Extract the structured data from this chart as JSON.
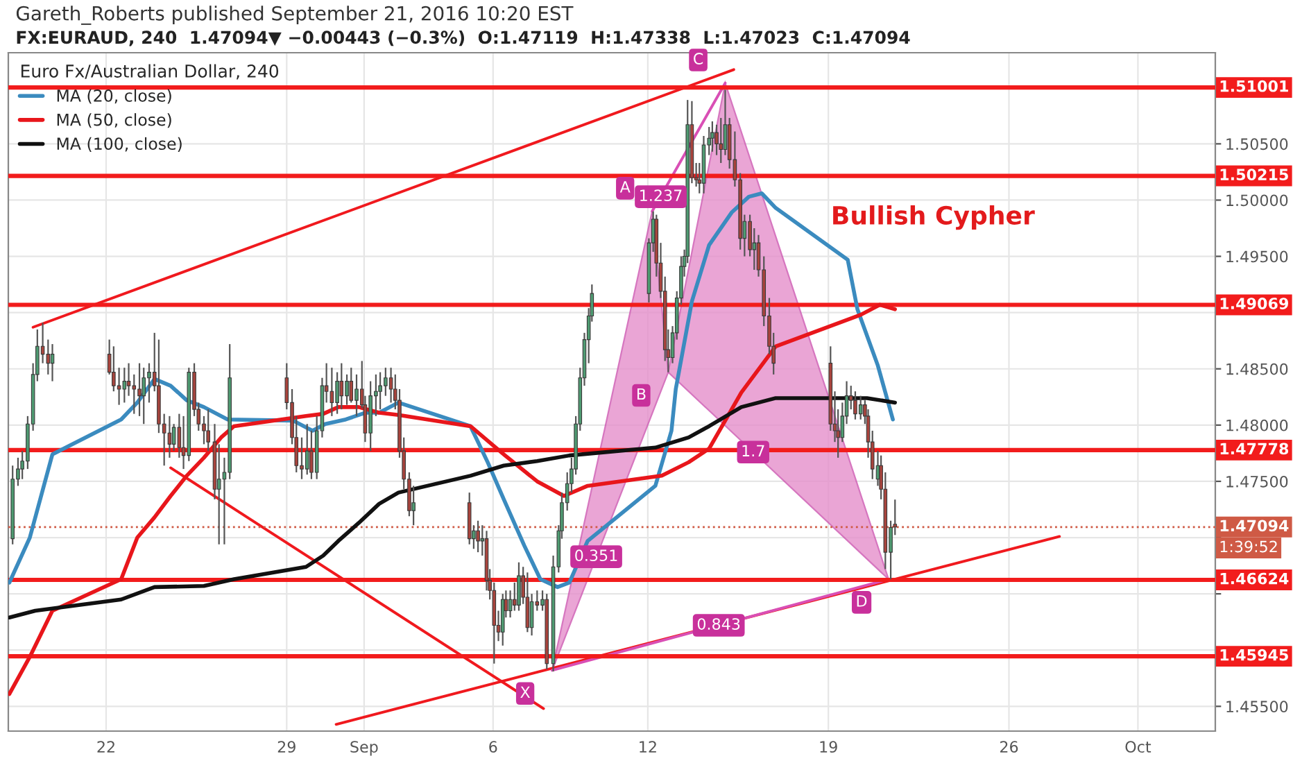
{
  "chart_data": {
    "type": "candlestick",
    "title": "Gareth_Roberts published September 21, 2016 10:20 EST",
    "subtitle": "FX:EURAUD, 240  1.47094▼ −0.00443 (−0.3%)  O:1.47119  H:1.47338  L:1.47023  C:1.47094",
    "legend_title": "Euro Fx/Australian Dollar, 240",
    "legend": "top left",
    "grid": true,
    "x": [
      "2016-08-18T09:00",
      "2016-08-18T14:00",
      "2016-08-18T18:00",
      "2016-08-18T23:00",
      "2016-08-19T04:00",
      "2016-08-19T08:00",
      "2016-08-19T13:00",
      "2016-08-19T18:00",
      "2016-08-19T22:00",
      "2016-08-22T03:00",
      "2016-08-22T07:00",
      "2016-08-22T12:00",
      "2016-08-22T17:00",
      "2016-08-22T21:00",
      "2016-08-23T02:00",
      "2016-08-23T07:00",
      "2016-08-23T11:00",
      "2016-08-23T16:00",
      "2016-08-23T21:00",
      "2016-08-24T01:00",
      "2016-08-24T06:00",
      "2016-08-24T11:00",
      "2016-08-24T15:00",
      "2016-08-24T20:00",
      "2016-08-25T00:00",
      "2016-08-25T05:00",
      "2016-08-25T10:00",
      "2016-08-25T14:00",
      "2016-08-25T19:00",
      "2016-08-25T23:00",
      "2016-08-26T05:00",
      "2016-08-26T09:00",
      "2016-08-26T14:00",
      "2016-08-26T19:00",
      "2016-08-29T00:00",
      "2016-08-29T05:00",
      "2016-08-29T09:00",
      "2016-08-29T14:00",
      "2016-08-29T19:00",
      "2016-08-29T23:00",
      "2016-08-30T04:00",
      "2016-08-30T09:00",
      "2016-08-30T13:00",
      "2016-08-30T18:00",
      "2016-08-30T23:00",
      "2016-08-31T03:00",
      "2016-08-31T08:00",
      "2016-08-31T12:00",
      "2016-08-31T17:00",
      "2016-08-31T22:00",
      "2016-09-01T01:00",
      "2016-09-01T06:00",
      "2016-09-01T11:00",
      "2016-09-01T15:00",
      "2016-09-01T20:00",
      "2016-09-02T01:00",
      "2016-09-02T05:00",
      "2016-09-02T09:00",
      "2016-09-02T13:00",
      "2016-09-02T18:00",
      "2016-09-02T22:00",
      "2016-09-05T02:00",
      "2016-09-05T06:00",
      "2016-09-05T10:00",
      "2016-09-05T14:00",
      "2016-09-05T18:00",
      "2016-09-05T21:00",
      "2016-09-06T01:00",
      "2016-09-06T05:00",
      "2016-09-06T09:00",
      "2016-09-06T12:00",
      "2016-09-06T16:00",
      "2016-09-06T20:00",
      "2016-09-07T00:00",
      "2016-09-07T04:00",
      "2016-09-07T08:00",
      "2016-09-07T12:00",
      "2016-09-07T17:00",
      "2016-09-07T22:00",
      "2016-09-08T02:00",
      "2016-09-08T08:00",
      "2016-09-08T13:00",
      "2016-09-08T16:00",
      "2016-09-08T21:00",
      "2016-09-09T01:00",
      "2016-09-09T05:00",
      "2016-09-09T09:00",
      "2016-09-09T13:00",
      "2016-09-09T17:00",
      "2016-09-09T20:00",
      "2016-09-12T01:00",
      "2016-09-12T05:00",
      "2016-09-12T08:00",
      "2016-09-12T12:00",
      "2016-09-12T16:00",
      "2016-09-12T19:00",
      "2016-09-12T23:00",
      "2016-09-13T03:00",
      "2016-09-13T07:00",
      "2016-09-13T10:00",
      "2016-09-13T13:00",
      "2016-09-13T17:00",
      "2016-09-13T21:00",
      "2016-09-14T00:00",
      "2016-09-14T04:00",
      "2016-09-14T09:00",
      "2016-09-14T12:00",
      "2016-09-14T16:00",
      "2016-09-14T20:00",
      "2016-09-15T00:00",
      "2016-09-15T04:00",
      "2016-09-15T09:00",
      "2016-09-15T14:00",
      "2016-09-15T18:00",
      "2016-09-15T23:00",
      "2016-09-16T03:00",
      "2016-09-16T07:00",
      "2016-09-16T12:00",
      "2016-09-16T17:00",
      "2016-09-16T21:00",
      "2016-09-19T02:00",
      "2016-09-19T06:00",
      "2016-09-19T09:00",
      "2016-09-19T13:00",
      "2016-09-19T17:00",
      "2016-09-19T21:00",
      "2016-09-20T01:00",
      "2016-09-20T06:00",
      "2016-09-20T10:00",
      "2016-09-20T13:00",
      "2016-09-20T17:00",
      "2016-09-20T22:00",
      "2016-09-21T01:00",
      "2016-09-21T05:00",
      "2016-09-21T10:00",
      "2016-09-21T14:00"
    ],
    "ohlc": [
      [
        1.4699,
        1.4764,
        1.4694,
        1.4752
      ],
      [
        1.4752,
        1.4771,
        1.4746,
        1.4761
      ],
      [
        1.4761,
        1.4777,
        1.4752,
        1.4768
      ],
      [
        1.4768,
        1.4808,
        1.4761,
        1.4801
      ],
      [
        1.4801,
        1.4855,
        1.4795,
        1.4845
      ],
      [
        1.4845,
        1.4885,
        1.4839,
        1.487
      ],
      [
        1.487,
        1.4891,
        1.4855,
        1.4863
      ],
      [
        1.4863,
        1.4876,
        1.4845,
        1.4855
      ],
      [
        1.4855,
        1.4872,
        1.4839,
        1.4863
      ],
      [
        1.4863,
        1.4876,
        1.4845,
        1.4847
      ],
      [
        1.4847,
        1.487,
        1.483,
        1.4835
      ],
      [
        1.4835,
        1.4851,
        1.4818,
        1.4832
      ],
      [
        1.4832,
        1.4851,
        1.482,
        1.4839
      ],
      [
        1.4839,
        1.4855,
        1.4826,
        1.4835
      ],
      [
        1.4835,
        1.4845,
        1.481,
        1.4832
      ],
      [
        1.4832,
        1.4855,
        1.4808,
        1.4826
      ],
      [
        1.4826,
        1.4851,
        1.4801,
        1.4842
      ],
      [
        1.4842,
        1.4855,
        1.482,
        1.4847
      ],
      [
        1.4847,
        1.4882,
        1.483,
        1.4835
      ],
      [
        1.4835,
        1.4876,
        1.4793,
        1.4801
      ],
      [
        1.4801,
        1.481,
        1.4764,
        1.4793
      ],
      [
        1.4793,
        1.4808,
        1.4771,
        1.4783
      ],
      [
        1.4783,
        1.4801,
        1.4777,
        1.4798
      ],
      [
        1.4798,
        1.481,
        1.4771,
        1.478
      ],
      [
        1.478,
        1.4808,
        1.4761,
        1.4773
      ],
      [
        1.4773,
        1.4851,
        1.4768,
        1.4847
      ],
      [
        1.4847,
        1.4855,
        1.4808,
        1.4814
      ],
      [
        1.4814,
        1.482,
        1.4795,
        1.4801
      ],
      [
        1.4801,
        1.4808,
        1.4783,
        1.4795
      ],
      [
        1.4795,
        1.4814,
        1.4777,
        1.4785
      ],
      [
        1.4785,
        1.4801,
        1.4734,
        1.4743
      ],
      [
        1.4743,
        1.4783,
        1.4694,
        1.4752
      ],
      [
        1.4752,
        1.4771,
        1.4694,
        1.4758
      ],
      [
        1.4758,
        1.4872,
        1.4752,
        1.4842
      ],
      [
        1.4842,
        1.4855,
        1.4814,
        1.482
      ],
      [
        1.482,
        1.4832,
        1.4783,
        1.4789
      ],
      [
        1.4789,
        1.4808,
        1.4758,
        1.4764
      ],
      [
        1.4764,
        1.4789,
        1.4752,
        1.4761
      ],
      [
        1.4761,
        1.4801,
        1.4756,
        1.4777
      ],
      [
        1.4777,
        1.4795,
        1.4752,
        1.4758
      ],
      [
        1.4758,
        1.4808,
        1.4752,
        1.4795
      ],
      [
        1.4795,
        1.4842,
        1.4789,
        1.4835
      ],
      [
        1.4835,
        1.4855,
        1.482,
        1.483
      ],
      [
        1.483,
        1.4851,
        1.4808,
        1.482
      ],
      [
        1.482,
        1.4847,
        1.481,
        1.4839
      ],
      [
        1.4839,
        1.4855,
        1.4814,
        1.4826
      ],
      [
        1.4826,
        1.4845,
        1.4818,
        1.4839
      ],
      [
        1.4839,
        1.4851,
        1.482,
        1.4822
      ],
      [
        1.4822,
        1.4845,
        1.4808,
        1.4832
      ],
      [
        1.4832,
        1.4857,
        1.4815,
        1.4818
      ],
      [
        1.4818,
        1.4826,
        1.4785,
        1.4793
      ],
      [
        1.4793,
        1.4839,
        1.4777,
        1.4826
      ],
      [
        1.4826,
        1.4845,
        1.4808,
        1.483
      ],
      [
        1.483,
        1.4847,
        1.4814,
        1.4835
      ],
      [
        1.4835,
        1.4851,
        1.4826,
        1.4842
      ],
      [
        1.4842,
        1.4851,
        1.482,
        1.4832
      ],
      [
        1.4832,
        1.4845,
        1.4814,
        1.4822
      ],
      [
        1.4822,
        1.4832,
        1.4771,
        1.4777
      ],
      [
        1.4777,
        1.4789,
        1.4743,
        1.4752
      ],
      [
        1.4752,
        1.4758,
        1.4719,
        1.4724
      ],
      [
        1.4724,
        1.4746,
        1.4711,
        1.4731
      ],
      [
        1.4731,
        1.474,
        1.4694,
        1.4699
      ],
      [
        1.4699,
        1.4711,
        1.469,
        1.4706
      ],
      [
        1.4706,
        1.4715,
        1.4687,
        1.4697
      ],
      [
        1.4697,
        1.4711,
        1.4684,
        1.4699
      ],
      [
        1.4699,
        1.4706,
        1.4653,
        1.4662
      ],
      [
        1.4662,
        1.4672,
        1.4645,
        1.4653
      ],
      [
        1.4653,
        1.466,
        1.4588,
        1.4622
      ],
      [
        1.4622,
        1.4635,
        1.4608,
        1.4616
      ],
      [
        1.4616,
        1.465,
        1.4604,
        1.4645
      ],
      [
        1.4645,
        1.4653,
        1.4629,
        1.4635
      ],
      [
        1.4635,
        1.4653,
        1.4629,
        1.4645
      ],
      [
        1.4645,
        1.466,
        1.4635,
        1.464
      ],
      [
        1.464,
        1.4678,
        1.4635,
        1.4666
      ],
      [
        1.4666,
        1.4674,
        1.4641,
        1.4647
      ],
      [
        1.4647,
        1.4669,
        1.4616,
        1.462
      ],
      [
        1.462,
        1.465,
        1.4613,
        1.4643
      ],
      [
        1.4643,
        1.4653,
        1.4635,
        1.464
      ],
      [
        1.464,
        1.4653,
        1.4635,
        1.4645
      ],
      [
        1.4645,
        1.465,
        1.4583,
        1.4588
      ],
      [
        1.4588,
        1.4684,
        1.4581,
        1.4674
      ],
      [
        1.4674,
        1.4711,
        1.4669,
        1.4706
      ],
      [
        1.4706,
        1.474,
        1.4699,
        1.4731
      ],
      [
        1.4731,
        1.4758,
        1.4724,
        1.4748
      ],
      [
        1.4748,
        1.4771,
        1.474,
        1.4761
      ],
      [
        1.4761,
        1.4808,
        1.4756,
        1.4801
      ],
      [
        1.4801,
        1.4851,
        1.4795,
        1.4842
      ],
      [
        1.4842,
        1.4882,
        1.4835,
        1.4876
      ],
      [
        1.4876,
        1.4904,
        1.4855,
        1.4897
      ],
      [
        1.4897,
        1.4925,
        1.4892,
        1.4917
      ],
      [
        1.4917,
        1.4966,
        1.4909,
        1.4962
      ],
      [
        1.4962,
        1.499,
        1.4954,
        1.4983
      ],
      [
        1.4983,
        1.4987,
        1.4932,
        1.4944
      ],
      [
        1.4944,
        1.4962,
        1.4913,
        1.4919
      ],
      [
        1.4919,
        1.4932,
        1.4857,
        1.4867
      ],
      [
        1.4867,
        1.4885,
        1.4847,
        1.486
      ],
      [
        1.486,
        1.4888,
        1.4855,
        1.4882
      ],
      [
        1.4882,
        1.4919,
        1.4876,
        1.4913
      ],
      [
        1.4913,
        1.495,
        1.4907,
        1.4941
      ],
      [
        1.4941,
        1.4956,
        1.4932,
        1.495
      ],
      [
        1.495,
        1.5089,
        1.4944,
        1.5067
      ],
      [
        1.5067,
        1.5088,
        1.5015,
        1.502
      ],
      [
        1.502,
        1.5033,
        1.5012,
        1.5018
      ],
      [
        1.5018,
        1.5033,
        1.5006,
        1.5015
      ],
      [
        1.5015,
        1.5057,
        1.5006,
        1.5049
      ],
      [
        1.5049,
        1.5065,
        1.504,
        1.5055
      ],
      [
        1.5055,
        1.507,
        1.5043,
        1.506
      ],
      [
        1.506,
        1.5067,
        1.504,
        1.505
      ],
      [
        1.505,
        1.5073,
        1.5033,
        1.5045
      ],
      [
        1.5045,
        1.5098,
        1.504,
        1.5067
      ],
      [
        1.5067,
        1.5073,
        1.5028,
        1.5036
      ],
      [
        1.5036,
        1.5061,
        1.5012,
        1.5018
      ],
      [
        1.5018,
        1.5024,
        1.4956,
        1.4966
      ],
      [
        1.4966,
        1.4987,
        1.495,
        1.4981
      ],
      [
        1.4981,
        1.4987,
        1.495,
        1.4956
      ],
      [
        1.4956,
        1.4975,
        1.4938,
        1.4962
      ],
      [
        1.4962,
        1.4969,
        1.4932,
        1.4938
      ],
      [
        1.4938,
        1.495,
        1.4888,
        1.4897
      ],
      [
        1.4897,
        1.4913,
        1.4863,
        1.487
      ],
      [
        1.487,
        1.4882,
        1.4845,
        1.4855
      ],
      [
        1.4855,
        1.487,
        1.4795,
        1.4801
      ],
      [
        1.4801,
        1.483,
        1.4785,
        1.4795
      ],
      [
        1.4795,
        1.4814,
        1.4771,
        1.4789
      ],
      [
        1.4789,
        1.482,
        1.4785,
        1.4808
      ],
      [
        1.4808,
        1.4839,
        1.4801,
        1.4826
      ],
      [
        1.4826,
        1.4835,
        1.4814,
        1.4822
      ],
      [
        1.4822,
        1.483,
        1.4805,
        1.481
      ],
      [
        1.481,
        1.4826,
        1.4805,
        1.4818
      ],
      [
        1.4818,
        1.4822,
        1.4801,
        1.4808
      ],
      [
        1.4808,
        1.4814,
        1.4771,
        1.4785
      ],
      [
        1.4785,
        1.4795,
        1.4752,
        1.4761
      ],
      [
        1.4752,
        1.4777,
        1.4746,
        1.4764
      ],
      [
        1.4764,
        1.4773,
        1.4734,
        1.4743
      ],
      [
        1.4743,
        1.4758,
        1.4672,
        1.4687
      ],
      [
        1.4687,
        1.4715,
        1.4663,
        1.4709
      ],
      [
        1.47119,
        1.47338,
        1.47023,
        1.47094
      ]
    ],
    "series": [
      {
        "type": "line",
        "name": "MA (20, close)",
        "color": "#3b8bbf",
        "x": [
          "2016-08-18T06:00",
          "2016-08-19T01:00",
          "2016-08-19T22:00",
          "2016-08-22T14:00",
          "2016-08-23T05:00",
          "2016-08-23T21:00",
          "2016-08-24T12:00",
          "2016-08-25T03:00",
          "2016-08-25T19:00",
          "2016-08-26T17:00",
          "2016-08-29T06:00",
          "2016-08-30T00:00",
          "2016-08-30T12:00",
          "2016-08-31T07:00",
          "2016-09-01T01:00",
          "2016-09-01T14:00",
          "2016-09-02T08:00",
          "2016-09-05T03:00",
          "2016-09-05T19:00",
          "2016-09-06T10:00",
          "2016-09-07T05:00",
          "2016-09-07T20:00",
          "2016-09-08T12:00",
          "2016-09-08T23:00",
          "2016-09-09T16:00",
          "2016-09-12T07:00",
          "2016-09-12T22:00",
          "2016-09-13T02:00",
          "2016-09-13T17:00",
          "2016-09-14T09:00",
          "2016-09-15T06:00",
          "2016-09-15T22:00",
          "2016-09-16T10:00",
          "2016-09-16T23:00",
          "2016-09-19T18:00",
          "2016-09-20T03:00",
          "2016-09-20T22:00",
          "2016-09-21T12:00"
        ],
        "values": [
          1.466,
          1.47,
          1.4774,
          1.4805,
          1.482,
          1.4841,
          1.4835,
          1.4822,
          1.4816,
          1.4805,
          1.4804,
          1.4795,
          1.4801,
          1.4805,
          1.4811,
          1.4811,
          1.482,
          1.4799,
          1.4767,
          1.4734,
          1.4693,
          1.4663,
          1.4656,
          1.466,
          1.4697,
          1.4746,
          1.4795,
          1.4832,
          1.491,
          1.496,
          1.4989,
          1.5003,
          1.5006,
          1.4993,
          1.4947,
          1.4903,
          1.4853,
          1.4805
        ]
      },
      {
        "type": "line",
        "name": "MA (50, close)",
        "color": "#e8161b",
        "x": [
          "2016-08-18T06:00",
          "2016-08-19T01:00",
          "2016-08-19T22:00",
          "2016-08-22T14:00",
          "2016-08-23T05:00",
          "2016-08-23T21:00",
          "2016-08-24T12:00",
          "2016-08-25T03:00",
          "2016-08-25T19:00",
          "2016-08-26T11:00",
          "2016-08-26T23:00",
          "2016-08-29T18:00",
          "2016-08-30T10:00",
          "2016-08-31T00:00",
          "2016-08-31T19:00",
          "2016-09-01T14:00",
          "2016-09-02T08:00",
          "2016-09-05T03:00",
          "2016-09-06T10:00",
          "2016-09-07T17:00",
          "2016-09-08T18:00",
          "2016-09-09T16:00",
          "2016-09-12T13:00",
          "2016-09-13T14:00",
          "2016-09-14T09:00",
          "2016-09-15T15:00",
          "2016-09-16T23:00",
          "2016-09-20T06:00",
          "2016-09-21T00:00",
          "2016-09-21T14:00"
        ],
        "values": [
          1.4561,
          1.4594,
          1.4635,
          1.4663,
          1.47,
          1.4718,
          1.4737,
          1.4755,
          1.4771,
          1.4789,
          1.4799,
          1.4808,
          1.481,
          1.4816,
          1.4816,
          1.4811,
          1.4809,
          1.4799,
          1.4774,
          1.475,
          1.4737,
          1.4746,
          1.4755,
          1.4767,
          1.4779,
          1.4829,
          1.487,
          1.4898,
          1.4907,
          1.4903
        ]
      },
      {
        "type": "line",
        "name": "MA (100, close)",
        "color": "#111111",
        "x": [
          "2016-08-18T06:00",
          "2016-08-19T06:00",
          "2016-08-22T14:00",
          "2016-08-23T21:00",
          "2016-08-25T19:00",
          "2016-08-26T23:00",
          "2016-08-29T18:00",
          "2016-08-30T10:00",
          "2016-08-31T00:00",
          "2016-08-31T19:00",
          "2016-09-01T14:00",
          "2016-09-02T08:00",
          "2016-09-05T03:00",
          "2016-09-06T10:00",
          "2016-09-07T17:00",
          "2016-09-08T23:00",
          "2016-09-12T07:00",
          "2016-09-13T14:00",
          "2016-09-14T09:00",
          "2016-09-15T15:00",
          "2016-09-16T23:00",
          "2016-09-20T12:00",
          "2016-09-21T14:00"
        ],
        "values": [
          1.4629,
          1.4635,
          1.4645,
          1.4656,
          1.4657,
          1.4663,
          1.4674,
          1.4684,
          1.4697,
          1.4713,
          1.473,
          1.474,
          1.4755,
          1.4764,
          1.4768,
          1.4773,
          1.478,
          1.4789,
          1.4799,
          1.4816,
          1.4824,
          1.4824,
          1.482
        ]
      },
      {
        "type": "line",
        "color": "#f0191e",
        "x": [
          "2016-08-19T04:00",
          "2016-09-15T08:00"
        ],
        "values": [
          1.4887,
          1.5116
        ]
      },
      {
        "type": "line",
        "color": "#f0191e",
        "x": [
          "2016-08-24T12:00",
          "2016-09-07T23:00"
        ],
        "values": [
          1.4762,
          1.4548
        ]
      },
      {
        "type": "line",
        "color": "#f0191e",
        "x": [
          "2016-08-30T22:00",
          "2016-09-27T23:00"
        ],
        "values": [
          1.4534,
          1.4701
        ]
      },
      {
        "type": "area",
        "color": "#e58fcb",
        "x": [
          "2016-09-08T07:00",
          "2016-09-12T04:00",
          "2016-09-12T19:00"
        ],
        "values": [
          1.4582,
          1.499,
          1.4847
        ]
      },
      {
        "type": "area",
        "color": "#e58fcb",
        "x": [
          "2016-09-12T19:00",
          "2016-09-15T00:00",
          "2016-09-21T08:00"
        ],
        "values": [
          1.4847,
          1.5104,
          1.4663
        ]
      },
      {
        "type": "line",
        "color": "#d94fb5",
        "x": [
          "2016-09-12T04:00",
          "2016-09-15T00:00"
        ],
        "values": [
          1.499,
          1.5104
        ]
      },
      {
        "type": "line",
        "color": "#d94fb5",
        "x": [
          "2016-09-08T07:00",
          "2016-09-21T08:00"
        ],
        "values": [
          1.4582,
          1.4663
        ]
      }
    ],
    "ref_lines": [
      {
        "axis": "y",
        "value": 1.51001,
        "label": "1.51001",
        "color": "#f21c1c"
      },
      {
        "axis": "y",
        "value": 1.50215,
        "label": "1.50215",
        "color": "#f21c1c"
      },
      {
        "axis": "y",
        "value": 1.49069,
        "label": "1.49069",
        "color": "#f21c1c"
      },
      {
        "axis": "y",
        "value": 1.47778,
        "label": "1.47778",
        "color": "#f21c1c"
      },
      {
        "axis": "y",
        "value": 1.46624,
        "label": "1.46624",
        "color": "#f21c1c"
      },
      {
        "axis": "y",
        "value": 1.45945,
        "label": "1.45945",
        "color": "#f21c1c"
      },
      {
        "axis": "y",
        "value": 1.47094,
        "label": "1.47094",
        "color": "#cf5a45",
        "line_style": "dotted"
      }
    ],
    "annotations": [
      "Bullish Cypher",
      "1:39:52",
      {
        "text": "X",
        "x": "2016-09-08T07:00",
        "y": 1.4582
      },
      {
        "text": "A",
        "x": "2016-09-12T04:00",
        "y": 1.499
      },
      {
        "text": "B",
        "x": "2016-09-12T19:00",
        "y": 1.4847
      },
      {
        "text": "C",
        "x": "2016-09-15T00:00",
        "y": 1.5104
      },
      {
        "text": "D",
        "x": "2016-09-21T08:00",
        "y": 1.4663
      },
      {
        "text": "1.237",
        "x": "2016-09-12T12:00",
        "y": 1.5003
      },
      {
        "text": "0.351",
        "x": "2016-09-10T00:00",
        "y": 1.4683
      },
      {
        "text": "1.7",
        "x": "2016-09-16T02:00",
        "y": 1.4776
      },
      {
        "text": "0.843",
        "x": "2016-09-14T18:00",
        "y": 1.4622
      }
    ],
    "xlim": [
      "2016-08-18T05:00",
      "2016-10-04T00:00"
    ],
    "ylim": [
      1.4528,
      1.5131
    ],
    "xticks": [
      {
        "value": "2016-08-22",
        "label": "22"
      },
      {
        "value": "2016-08-29",
        "label": "29"
      },
      {
        "value": "2016-09",
        "label": "Sep"
      },
      {
        "value": "2016-09-06",
        "label": "6"
      },
      {
        "value": "2016-09-12",
        "label": "12"
      },
      {
        "value": "2016-09-19",
        "label": "19"
      },
      {
        "value": "2016-09-26",
        "label": "26"
      },
      {
        "value": "2016-10",
        "label": "Oct"
      }
    ],
    "yticks": [
      {
        "value": 1.455,
        "label": "1.45500"
      },
      {
        "value": 1.46,
        "label": null
      },
      {
        "value": 1.465,
        "label": null
      },
      {
        "value": 1.47,
        "label": null
      },
      {
        "value": 1.475,
        "label": "1.47500"
      },
      {
        "value": 1.48,
        "label": "1.48000"
      },
      {
        "value": 1.485,
        "label": "1.48500"
      },
      {
        "value": 1.49,
        "label": null
      },
      {
        "value": 1.495,
        "label": "1.49500"
      },
      {
        "value": 1.5,
        "label": "1.50000"
      },
      {
        "value": 1.505,
        "label": "1.50500"
      },
      {
        "value": 1.51,
        "label": null
      }
    ]
  }
}
